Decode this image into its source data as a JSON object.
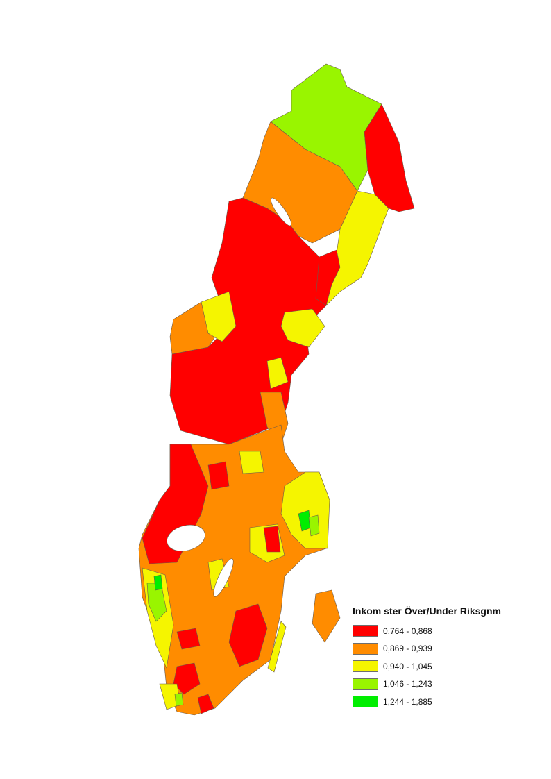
{
  "legend": {
    "title": "Inkom ster Över/Under Riksgnm",
    "classes": [
      {
        "label": "0,764 - 0,868",
        "color": "#ff0000"
      },
      {
        "label": "0,869 - 0,939",
        "color": "#ff8c00"
      },
      {
        "label": "0,940 - 1,045",
        "color": "#f5f500"
      },
      {
        "label": "1,046 - 1,243",
        "color": "#99f500"
      },
      {
        "label": "1,244 - 1,885",
        "color": "#00ee00"
      }
    ]
  }
}
